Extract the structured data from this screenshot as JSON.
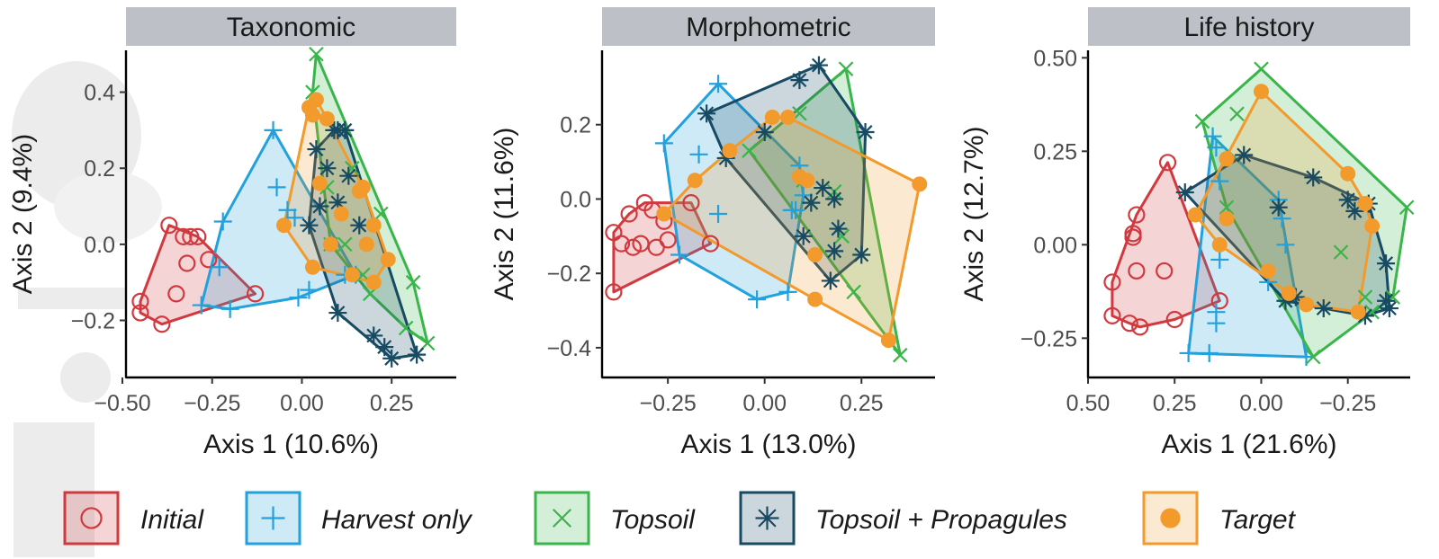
{
  "legend": {
    "entries": [
      {
        "name": "Initial",
        "label": "Initial",
        "color": "#d03a3f",
        "shape": "circle-open"
      },
      {
        "name": "Harvest only",
        "label": "Harvest only",
        "color": "#22a1dc",
        "shape": "plus"
      },
      {
        "name": "Topsoil",
        "label": "Topsoil",
        "color": "#39b54a",
        "shape": "cross"
      },
      {
        "name": "Topsoil + Propagules",
        "label": "Topsoil + Propagules",
        "color": "#174a63",
        "shape": "asterisk"
      },
      {
        "name": "Target",
        "label": "Target",
        "color": "#f39a2c",
        "shape": "circle-filled"
      }
    ]
  },
  "chart_data": [
    {
      "type": "scatter",
      "title": "Taxonomic",
      "xlabel": "Axis 1 (10.6%)",
      "ylabel": "Axis 2 (9.4%)",
      "xlim": [
        -0.49,
        0.43
      ],
      "ylim": [
        -0.35,
        0.51
      ],
      "x_reversed": false,
      "xticks": [
        -0.5,
        -0.25,
        0.0,
        0.25
      ],
      "xtick_labels": [
        "−0.50",
        "−0.25",
        "0.00",
        "0.25"
      ],
      "yticks": [
        -0.2,
        0.0,
        0.2,
        0.4
      ],
      "ytick_labels": [
        "−0.2",
        "0.0",
        "0.2",
        "0.4"
      ],
      "grid": false,
      "series": [
        {
          "name": "Initial",
          "points": [
            [
              -0.45,
              -0.15
            ],
            [
              -0.45,
              -0.18
            ],
            [
              -0.39,
              -0.21
            ],
            [
              -0.37,
              0.05
            ],
            [
              -0.35,
              -0.13
            ],
            [
              -0.33,
              0.02
            ],
            [
              -0.32,
              -0.05
            ],
            [
              -0.31,
              0.02
            ],
            [
              -0.29,
              0.02
            ],
            [
              -0.26,
              -0.04
            ],
            [
              -0.13,
              -0.13
            ]
          ]
        },
        {
          "name": "Harvest only",
          "points": [
            [
              -0.28,
              -0.16
            ],
            [
              -0.23,
              -0.06
            ],
            [
              -0.22,
              0.06
            ],
            [
              -0.2,
              -0.17
            ],
            [
              -0.08,
              0.3
            ],
            [
              -0.07,
              0.15
            ],
            [
              -0.04,
              0.09
            ],
            [
              -0.02,
              0.07
            ],
            [
              -0.01,
              -0.14
            ],
            [
              0.02,
              -0.12
            ],
            [
              0.12,
              -0.08
            ],
            [
              0.15,
              -0.08
            ]
          ]
        },
        {
          "name": "Topsoil",
          "points": [
            [
              0.04,
              0.5
            ],
            [
              0.03,
              0.4
            ],
            [
              0.07,
              0.15
            ],
            [
              0.08,
              0.0
            ],
            [
              0.12,
              0.0
            ],
            [
              0.14,
              0.2
            ],
            [
              0.17,
              -0.08
            ],
            [
              0.19,
              -0.13
            ],
            [
              0.22,
              0.08
            ],
            [
              0.31,
              -0.1
            ],
            [
              0.29,
              -0.22
            ],
            [
              0.35,
              -0.26
            ]
          ]
        },
        {
          "name": "Topsoil + Propagules",
          "points": [
            [
              0.02,
              0.05
            ],
            [
              0.04,
              0.25
            ],
            [
              0.05,
              0.1
            ],
            [
              0.07,
              0.2
            ],
            [
              0.09,
              0.3
            ],
            [
              0.1,
              0.3
            ],
            [
              0.12,
              0.3
            ],
            [
              0.1,
              0.11
            ],
            [
              0.13,
              0.18
            ],
            [
              0.16,
              0.05
            ],
            [
              0.1,
              -0.18
            ],
            [
              0.2,
              -0.24
            ],
            [
              0.23,
              -0.27
            ],
            [
              0.25,
              -0.3
            ],
            [
              0.32,
              -0.29
            ]
          ]
        },
        {
          "name": "Target",
          "points": [
            [
              -0.05,
              0.05
            ],
            [
              0.02,
              0.36
            ],
            [
              0.03,
              0.34
            ],
            [
              0.04,
              0.38
            ],
            [
              0.07,
              0.33
            ],
            [
              0.05,
              0.16
            ],
            [
              0.03,
              -0.06
            ],
            [
              0.08,
              0.0
            ],
            [
              0.11,
              0.08
            ],
            [
              0.16,
              0.14
            ],
            [
              0.17,
              0.15
            ],
            [
              0.2,
              0.05
            ],
            [
              0.18,
              0.0
            ],
            [
              0.24,
              -0.04
            ],
            [
              0.2,
              -0.1
            ],
            [
              0.14,
              -0.08
            ]
          ]
        }
      ]
    },
    {
      "type": "scatter",
      "title": "Morphometric",
      "xlabel": "Axis 1 (13.0%)",
      "ylabel": "Axis 2 (11.6%)",
      "xlim": [
        -0.42,
        0.44
      ],
      "ylim": [
        -0.48,
        0.4
      ],
      "x_reversed": false,
      "xticks": [
        -0.25,
        0.0,
        0.25
      ],
      "xtick_labels": [
        "−0.25",
        "0.00",
        "0.25"
      ],
      "yticks": [
        -0.4,
        -0.2,
        0.0,
        0.2
      ],
      "ytick_labels": [
        "−0.4",
        "−0.2",
        "0.0",
        "0.2"
      ],
      "grid": false,
      "series": [
        {
          "name": "Initial",
          "points": [
            [
              -0.39,
              -0.25
            ],
            [
              -0.39,
              -0.09
            ],
            [
              -0.37,
              -0.12
            ],
            [
              -0.35,
              -0.04
            ],
            [
              -0.34,
              -0.13
            ],
            [
              -0.32,
              -0.12
            ],
            [
              -0.31,
              -0.01
            ],
            [
              -0.29,
              -0.03
            ],
            [
              -0.28,
              -0.13
            ],
            [
              -0.26,
              -0.06
            ],
            [
              -0.25,
              -0.11
            ],
            [
              -0.19,
              -0.01
            ],
            [
              -0.14,
              -0.12
            ]
          ]
        },
        {
          "name": "Harvest only",
          "points": [
            [
              -0.26,
              0.15
            ],
            [
              -0.22,
              -0.15
            ],
            [
              -0.17,
              0.12
            ],
            [
              -0.12,
              0.31
            ],
            [
              -0.12,
              -0.04
            ],
            [
              -0.02,
              -0.27
            ],
            [
              0.06,
              -0.25
            ],
            [
              0.07,
              -0.03
            ],
            [
              0.09,
              0.09
            ],
            [
              0.08,
              -0.03
            ],
            [
              0.1,
              0.01
            ]
          ]
        },
        {
          "name": "Topsoil",
          "points": [
            [
              -0.04,
              0.13
            ],
            [
              0.09,
              0.23
            ],
            [
              0.1,
              0.05
            ],
            [
              0.18,
              0.02
            ],
            [
              0.2,
              -0.1
            ],
            [
              0.21,
              0.35
            ],
            [
              0.23,
              -0.25
            ],
            [
              0.35,
              -0.42
            ]
          ]
        },
        {
          "name": "Topsoil + Propagules",
          "points": [
            [
              -0.15,
              0.23
            ],
            [
              -0.1,
              0.11
            ],
            [
              0.0,
              0.18
            ],
            [
              0.09,
              0.32
            ],
            [
              0.14,
              0.36
            ],
            [
              0.15,
              0.03
            ],
            [
              0.17,
              -0.22
            ],
            [
              0.18,
              0.0
            ],
            [
              0.18,
              -0.14
            ],
            [
              0.19,
              -0.08
            ],
            [
              0.25,
              -0.15
            ],
            [
              0.26,
              0.18
            ],
            [
              0.1,
              -0.1
            ],
            [
              0.12,
              -0.01
            ]
          ]
        },
        {
          "name": "Target",
          "points": [
            [
              -0.26,
              -0.04
            ],
            [
              -0.18,
              0.05
            ],
            [
              -0.09,
              0.13
            ],
            [
              0.02,
              0.22
            ],
            [
              0.06,
              0.22
            ],
            [
              0.09,
              0.06
            ],
            [
              0.11,
              0.05
            ],
            [
              0.13,
              -0.15
            ],
            [
              0.13,
              -0.27
            ],
            [
              0.32,
              -0.38
            ],
            [
              0.4,
              0.04
            ]
          ]
        }
      ]
    },
    {
      "type": "scatter",
      "title": "Life history",
      "xlabel": "Axis 1 (21.6%)",
      "ylabel": "Axis 2 (12.7%)",
      "xlim": [
        0.5,
        -0.43
      ],
      "ylim": [
        -0.355,
        0.52
      ],
      "x_reversed": true,
      "xticks": [
        0.5,
        0.25,
        0.0,
        -0.25
      ],
      "xtick_labels": [
        "0.50",
        "0.25",
        "0.00",
        "−0.25"
      ],
      "yticks": [
        -0.25,
        0.0,
        0.25,
        0.5
      ],
      "ytick_labels": [
        "−0.25",
        "0.00",
        "0.25",
        "0.50"
      ],
      "grid": false,
      "series": [
        {
          "name": "Initial",
          "points": [
            [
              0.27,
              0.22
            ],
            [
              0.36,
              0.08
            ],
            [
              0.37,
              0.03
            ],
            [
              0.37,
              0.02
            ],
            [
              0.36,
              -0.07
            ],
            [
              0.28,
              -0.07
            ],
            [
              0.43,
              -0.1
            ],
            [
              0.43,
              -0.19
            ],
            [
              0.38,
              -0.21
            ],
            [
              0.35,
              -0.22
            ],
            [
              0.25,
              -0.2
            ],
            [
              0.12,
              -0.15
            ]
          ]
        },
        {
          "name": "Harvest only",
          "points": [
            [
              0.14,
              0.29
            ],
            [
              0.13,
              0.26
            ],
            [
              0.12,
              0.17
            ],
            [
              0.12,
              -0.04
            ],
            [
              0.13,
              -0.18
            ],
            [
              0.13,
              -0.21
            ],
            [
              0.21,
              -0.29
            ],
            [
              0.15,
              -0.29
            ],
            [
              -0.05,
              0.12
            ],
            [
              -0.06,
              0.07
            ],
            [
              -0.07,
              0.0
            ],
            [
              -0.02,
              -0.1
            ],
            [
              -0.13,
              -0.3
            ]
          ]
        },
        {
          "name": "Topsoil",
          "points": [
            [
              0.17,
              0.33
            ],
            [
              0.07,
              0.35
            ],
            [
              0.0,
              0.47
            ],
            [
              0.1,
              0.1
            ],
            [
              -0.15,
              -0.3
            ],
            [
              -0.23,
              -0.02
            ],
            [
              -0.3,
              -0.14
            ],
            [
              -0.32,
              -0.18
            ],
            [
              -0.38,
              -0.14
            ],
            [
              -0.42,
              0.1
            ]
          ]
        },
        {
          "name": "Topsoil + Propagules",
          "points": [
            [
              0.22,
              0.14
            ],
            [
              0.05,
              0.24
            ],
            [
              -0.05,
              0.1
            ],
            [
              -0.15,
              0.18
            ],
            [
              -0.25,
              0.12
            ],
            [
              -0.27,
              0.09
            ],
            [
              -0.31,
              0.11
            ],
            [
              -0.3,
              -0.19
            ],
            [
              -0.36,
              -0.15
            ],
            [
              -0.37,
              -0.17
            ],
            [
              -0.36,
              -0.05
            ],
            [
              -0.1,
              -0.14
            ],
            [
              -0.07,
              -0.15
            ],
            [
              -0.18,
              -0.17
            ]
          ]
        },
        {
          "name": "Target",
          "points": [
            [
              0.0,
              0.41
            ],
            [
              0.1,
              0.23
            ],
            [
              0.19,
              0.08
            ],
            [
              0.1,
              0.07
            ],
            [
              0.12,
              0.0
            ],
            [
              -0.02,
              -0.07
            ],
            [
              -0.08,
              -0.13
            ],
            [
              -0.13,
              -0.16
            ],
            [
              -0.28,
              -0.18
            ],
            [
              -0.25,
              0.19
            ],
            [
              -0.3,
              0.11
            ],
            [
              -0.32,
              0.05
            ]
          ]
        }
      ]
    }
  ]
}
